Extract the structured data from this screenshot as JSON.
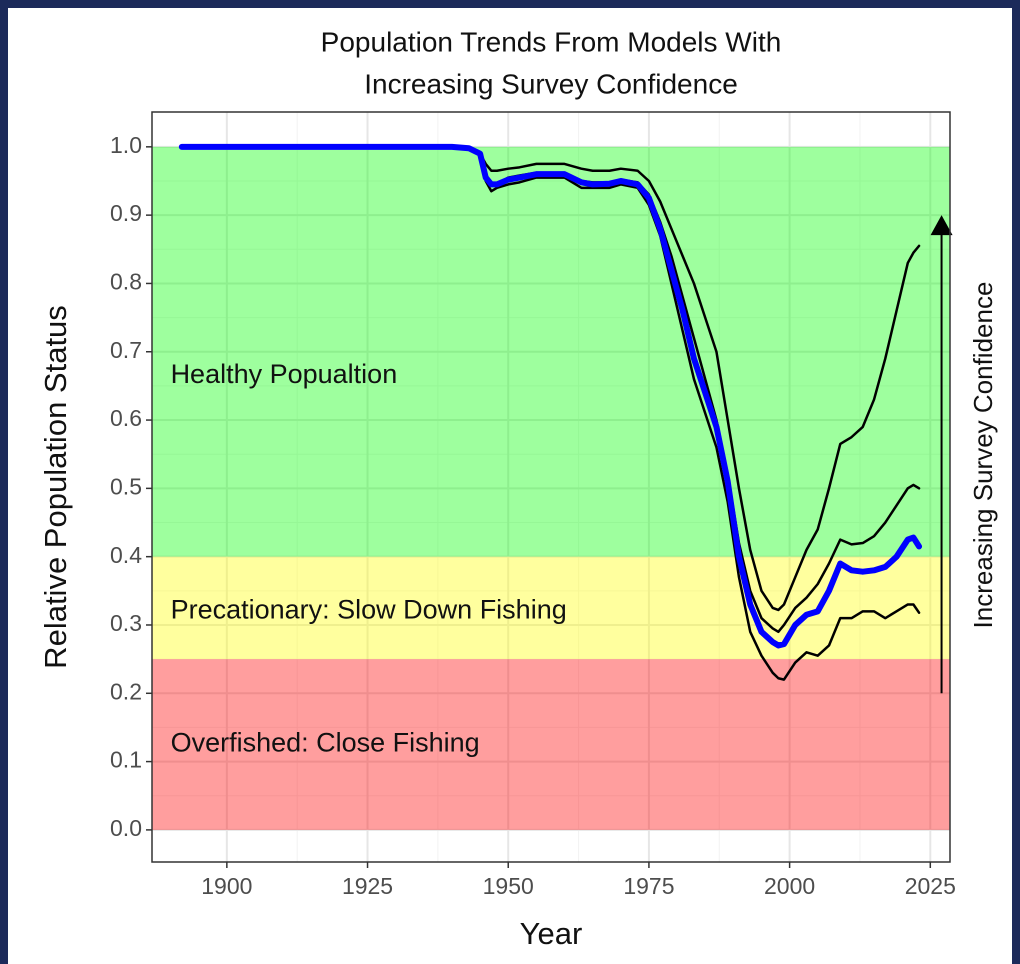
{
  "chart_data": {
    "type": "line",
    "title": [
      "Population Trends From Models With",
      "Increasing Survey Confidence"
    ],
    "x_label": "Year",
    "y_label": "Relative Population Status",
    "xlim": [
      1886.7,
      2028.5
    ],
    "ylim": [
      -0.047,
      1.051
    ],
    "xticks": [
      1900,
      1925,
      1950,
      1975,
      2000,
      2025
    ],
    "yticks": [
      {
        "value": 0,
        "label": "0.0"
      },
      0.1,
      0.2,
      0.3,
      0.4,
      0.5,
      0.6,
      0.7,
      0.8,
      0.9,
      {
        "value": 1,
        "label": "1.0"
      }
    ],
    "grid": true,
    "zones": [
      {
        "label": "Healthy Popualtion",
        "ymin": 0.4,
        "ymax": 1.0,
        "color": "#00ff00",
        "label_x": 1890,
        "label_y": 0.665
      },
      {
        "label": "Precationary: Slow Down Fishing",
        "ymin": 0.25,
        "ymax": 0.4,
        "color": "#ffff00",
        "label_x": 1890,
        "label_y": 0.32
      },
      {
        "label": "Overfished: Close Fishing",
        "ymin": 0.0,
        "ymax": 0.25,
        "color": "#ff0000",
        "label_x": 1890,
        "label_y": 0.125
      }
    ],
    "arrow": {
      "label": "Increasing Survey Confidence",
      "x": 2027,
      "y_start": 0.2,
      "y_end": 0.9,
      "color": "#000000"
    },
    "x": [
      1892,
      1900,
      1910,
      1920,
      1930,
      1940,
      1943,
      1945,
      1946,
      1947,
      1948,
      1950,
      1952,
      1955,
      1958,
      1960,
      1963,
      1965,
      1968,
      1970,
      1973,
      1975,
      1977,
      1979,
      1981,
      1983,
      1985,
      1987,
      1989,
      1991,
      1993,
      1995,
      1997,
      1998,
      1999,
      2001,
      2003,
      2005,
      2007,
      2009,
      2011,
      2013,
      2015,
      2017,
      2019,
      2021,
      2022,
      2023
    ],
    "series": [
      {
        "color": "#000000",
        "line_width": 2.5,
        "values": [
          1,
          1,
          1,
          1,
          1,
          1,
          0.998,
          0.99,
          0.975,
          0.965,
          0.965,
          0.968,
          0.97,
          0.975,
          0.975,
          0.975,
          0.968,
          0.965,
          0.965,
          0.968,
          0.965,
          0.95,
          0.92,
          0.88,
          0.84,
          0.8,
          0.75,
          0.7,
          0.6,
          0.5,
          0.41,
          0.35,
          0.325,
          0.322,
          0.33,
          0.37,
          0.41,
          0.44,
          0.5,
          0.565,
          0.575,
          0.59,
          0.63,
          0.69,
          0.76,
          0.83,
          0.845,
          0.855
        ]
      },
      {
        "color": "#000000",
        "line_width": 2.5,
        "values": [
          1,
          1,
          1,
          1,
          1,
          1,
          0.998,
          0.99,
          0.96,
          0.945,
          0.945,
          0.955,
          0.958,
          0.962,
          0.962,
          0.962,
          0.95,
          0.948,
          0.948,
          0.952,
          0.948,
          0.93,
          0.89,
          0.84,
          0.78,
          0.72,
          0.66,
          0.6,
          0.52,
          0.42,
          0.35,
          0.31,
          0.295,
          0.29,
          0.3,
          0.325,
          0.34,
          0.36,
          0.39,
          0.425,
          0.418,
          0.42,
          0.43,
          0.45,
          0.475,
          0.5,
          0.505,
          0.5
        ]
      },
      {
        "color": "#000000",
        "line_width": 2.5,
        "values": [
          1,
          1,
          1,
          1,
          1,
          1,
          0.998,
          0.99,
          0.95,
          0.935,
          0.94,
          0.945,
          0.948,
          0.955,
          0.955,
          0.955,
          0.94,
          0.94,
          0.94,
          0.945,
          0.94,
          0.915,
          0.87,
          0.8,
          0.73,
          0.66,
          0.61,
          0.56,
          0.48,
          0.37,
          0.29,
          0.255,
          0.23,
          0.222,
          0.22,
          0.245,
          0.26,
          0.255,
          0.27,
          0.31,
          0.31,
          0.32,
          0.32,
          0.31,
          0.32,
          0.33,
          0.33,
          0.318
        ]
      },
      {
        "color": "#0000ff",
        "line_width": 6,
        "values": [
          1,
          1,
          1,
          1,
          1,
          1,
          0.998,
          0.99,
          0.955,
          0.945,
          0.945,
          0.952,
          0.955,
          0.96,
          0.96,
          0.96,
          0.948,
          0.945,
          0.946,
          0.95,
          0.945,
          0.925,
          0.88,
          0.82,
          0.76,
          0.69,
          0.64,
          0.59,
          0.51,
          0.4,
          0.33,
          0.29,
          0.275,
          0.27,
          0.272,
          0.3,
          0.315,
          0.32,
          0.35,
          0.39,
          0.38,
          0.378,
          0.38,
          0.385,
          0.4,
          0.425,
          0.428,
          0.415
        ]
      }
    ]
  }
}
